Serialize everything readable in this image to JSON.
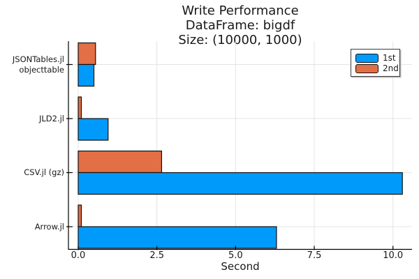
{
  "chart_data": {
    "type": "bar",
    "orientation": "horizontal",
    "title": "Write Performance",
    "subtitle_lines": [
      "DataFrame: bigdf",
      "Size: (10000, 1000)"
    ],
    "xlabel": "Second",
    "ylabel": "",
    "categories": [
      "JSONTables.jl objecttable",
      "JLD2.jl",
      "CSV.jl (gz)",
      "Arrow.jl"
    ],
    "category_display_lines": [
      [
        "JSONTables.jl",
        "objecttable"
      ],
      [
        "JLD2.jl"
      ],
      [
        "CSV.jl (gz)"
      ],
      [
        "Arrow.jl"
      ]
    ],
    "series": [
      {
        "name": "1st",
        "color": "#009AFA",
        "values": [
          0.5,
          0.95,
          10.3,
          6.3
        ]
      },
      {
        "name": "2nd",
        "color": "#E26F46",
        "values": [
          0.55,
          0.1,
          2.65,
          0.1
        ]
      }
    ],
    "unit": "seconds",
    "x_tick_labels": [
      "0.0",
      "2.5",
      "5.0",
      "7.5",
      "10.0"
    ],
    "x_tick_values": [
      0,
      2.5,
      5,
      7.5,
      10
    ],
    "xlim": [
      -0.31,
      10.6
    ],
    "grid": true,
    "legend": {
      "position": "top-right",
      "entries": [
        "1st",
        "2nd"
      ]
    },
    "colors": {
      "background": "#FFFFFF",
      "bar_edge": "#101010",
      "grid": "#E4E4E4",
      "axis": "#000000",
      "text": "#191919",
      "legend_border": "#3A3A3A",
      "legend_shadow": "#BBBBBB"
    }
  }
}
